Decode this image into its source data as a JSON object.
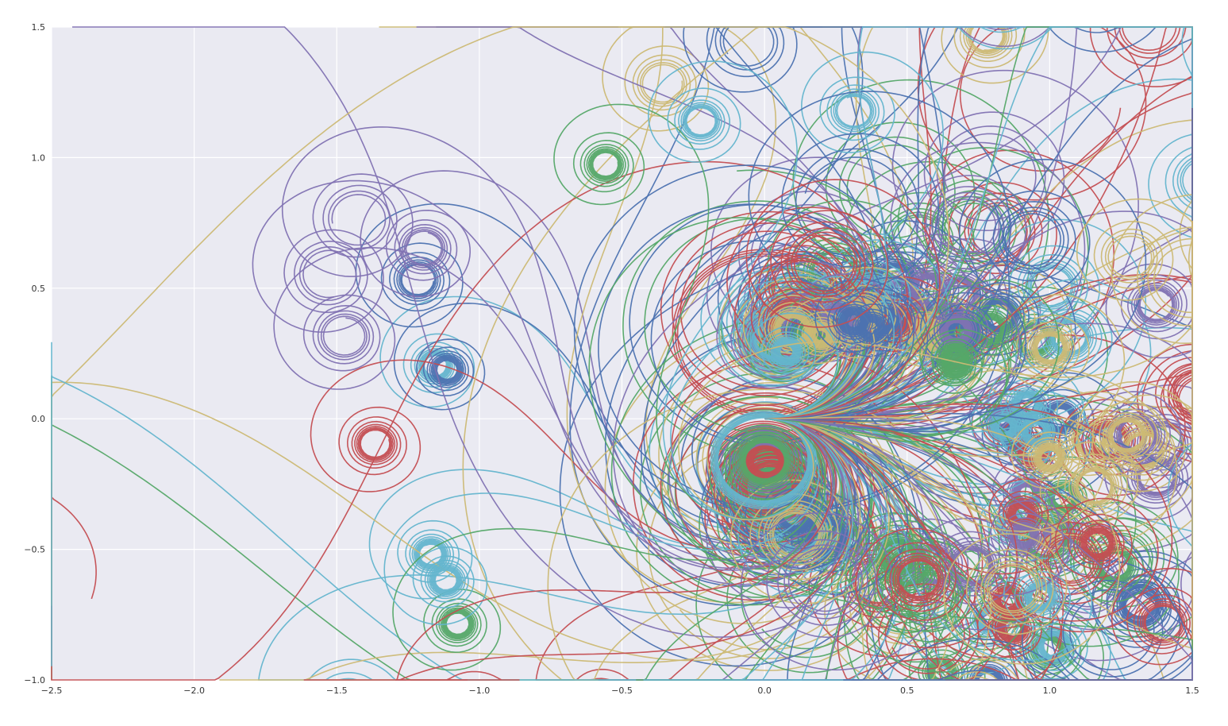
{
  "chart_data": {
    "type": "line",
    "title": "",
    "xlabel": "",
    "ylabel": "",
    "xlim": [
      -2.5,
      1.5
    ],
    "ylim": [
      -1.0,
      1.5
    ],
    "xticks": [
      -2.5,
      -2.0,
      -1.5,
      -1.0,
      -0.5,
      0.0,
      0.5,
      1.0,
      1.5
    ],
    "yticks": [
      -1.0,
      -0.5,
      0.0,
      0.5,
      1.0,
      1.5
    ],
    "xtick_labels": [
      "−2.5",
      "−2.0",
      "−1.5",
      "−1.0",
      "−0.5",
      "0.0",
      "0.5",
      "1.0",
      "1.5"
    ],
    "ytick_labels": [
      "−1.0",
      "−0.5",
      "0.0",
      "0.5",
      "1.0",
      "1.5"
    ],
    "grid": true,
    "legend": "none",
    "background": "#EAEAF2",
    "palette": [
      "#4C72B0",
      "#55A868",
      "#C44E52",
      "#8172B2",
      "#CCB974",
      "#64B5CD"
    ],
    "curve_count": 300,
    "origin": [
      0.0,
      0.0
    ],
    "curvature_range": [
      -6.5,
      3.2
    ],
    "curvature_rate_range": [
      -3.0,
      7.0
    ]
  }
}
